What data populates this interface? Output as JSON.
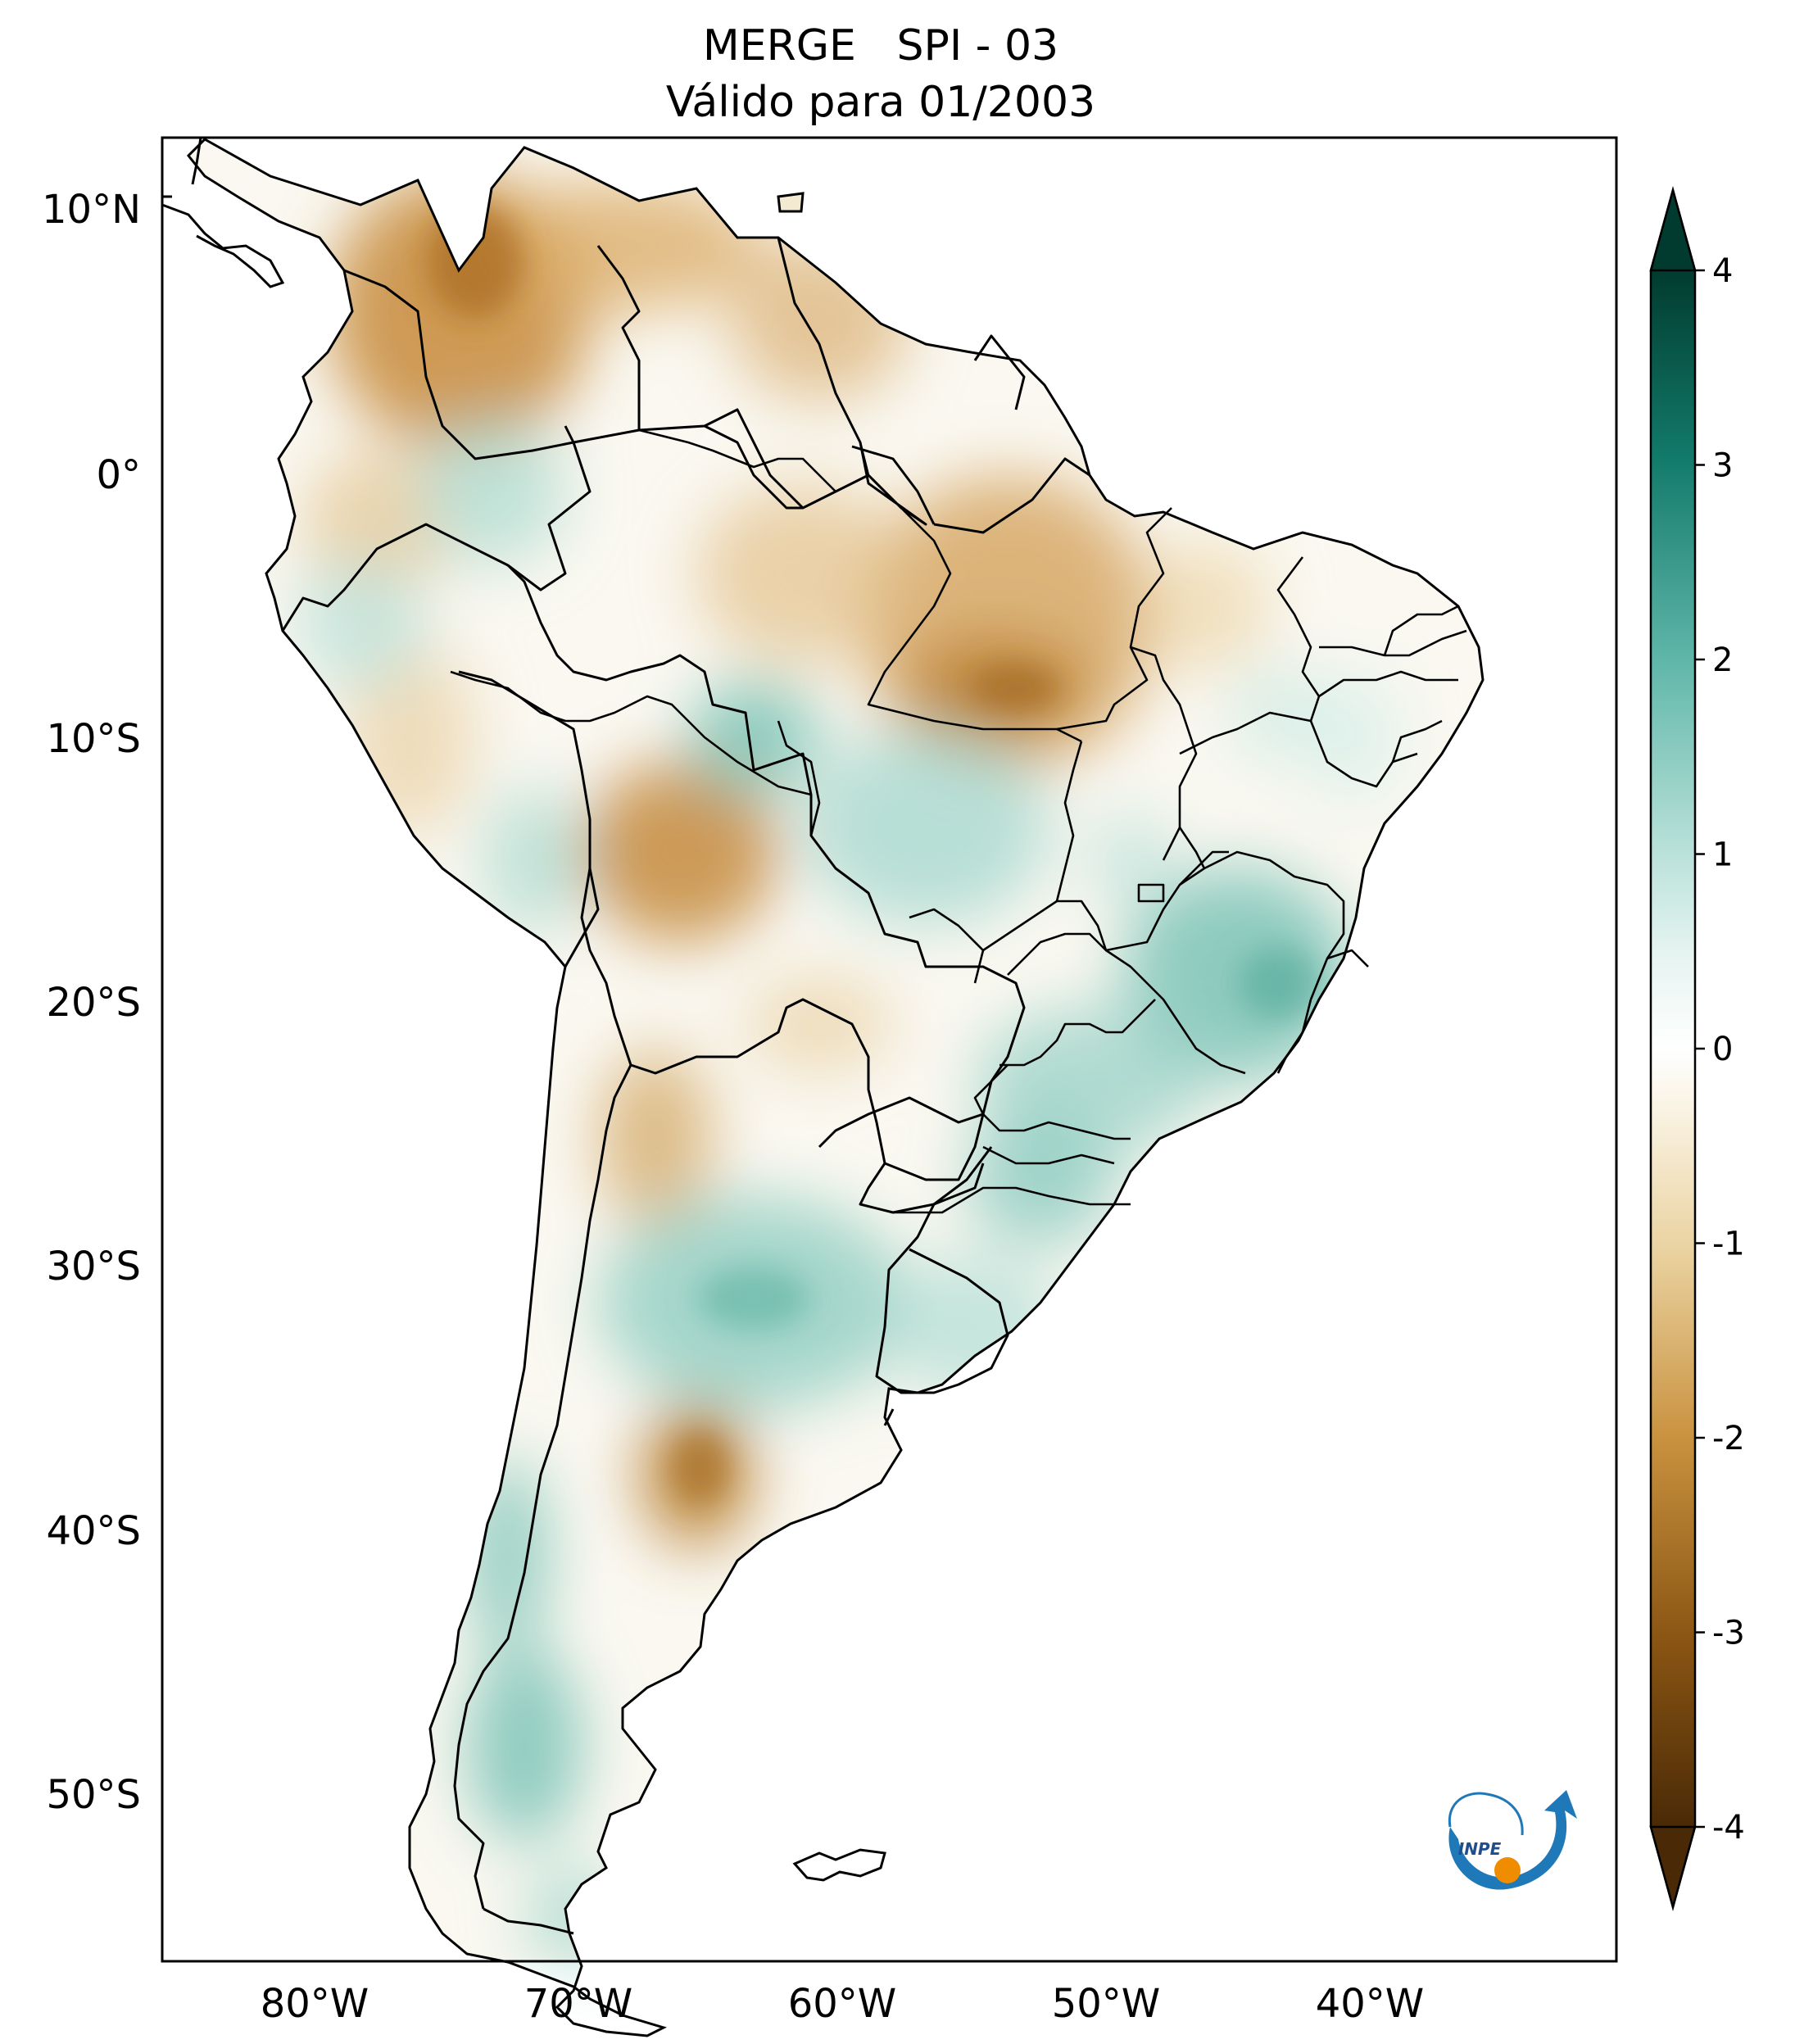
{
  "title": {
    "line1": "MERGE   SPI - 03",
    "line2": "Válido para 01/2003"
  },
  "axes": {
    "lat_labels": [
      "10°N",
      "0°",
      "10°S",
      "20°S",
      "30°S",
      "40°S",
      "50°S"
    ],
    "lon_labels": [
      "80°W",
      "70°W",
      "60°W",
      "50°W",
      "40°W"
    ]
  },
  "colorbar": {
    "ticks": [
      "4",
      "3",
      "2",
      "1",
      "0",
      "-1",
      "-2",
      "-3",
      "-4"
    ],
    "values": [
      4,
      3,
      2,
      1,
      0,
      -1,
      -2,
      -3,
      -4
    ],
    "range": [
      -4,
      4
    ],
    "colors": {
      "wet_max": "#013b2f",
      "wet_mid": "#5fb6a9",
      "neutral": "#ffffff",
      "dry_mid": "#d8b36e",
      "dry_max": "#4a2a06"
    }
  },
  "logo": {
    "text": "INPE"
  },
  "map": {
    "land_colors": {
      "dry": "#c78a3a",
      "dry_light": "#eed7a6",
      "neutral": "#fbfaf6",
      "wet_light": "#cfeae5",
      "wet": "#7cc3b6"
    }
  }
}
